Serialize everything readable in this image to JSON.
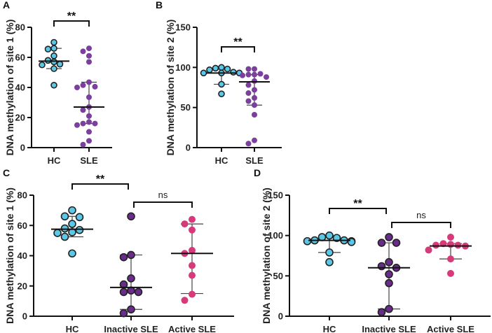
{
  "chart_data": [
    {
      "panel": "A",
      "type": "scatter",
      "ylabel": "DNA methylation of site 1 (%)",
      "ylim": [
        0,
        80
      ],
      "yticks": [
        0,
        20,
        40,
        60,
        80
      ],
      "categories": [
        "HC",
        "SLE"
      ],
      "series": [
        {
          "name": "HC",
          "color": "#5bc8e8",
          "outline": true,
          "values": [
            70,
            66,
            65.5,
            61,
            58,
            57,
            55.5,
            55,
            52.5,
            41.5
          ],
          "median": 57.5,
          "iqr": [
            52.5,
            66
          ]
        },
        {
          "name": "SLE",
          "color": "#7b3f9e",
          "outline": false,
          "values": [
            66,
            64,
            61,
            57,
            43.5,
            41.5,
            40.5,
            40,
            33.5,
            27,
            25,
            21,
            17,
            16,
            16,
            15,
            10.5,
            4.5,
            2
          ],
          "median": 27,
          "iqr": [
            16,
            43.5
          ]
        }
      ],
      "comparisons": [
        {
          "from": "HC",
          "to": "SLE",
          "label": "**"
        }
      ]
    },
    {
      "panel": "B",
      "type": "scatter",
      "ylabel": "DNA methylation of site 2 (%)",
      "ylim": [
        0,
        150
      ],
      "yticks": [
        0,
        50,
        100,
        150
      ],
      "categories": [
        "HC",
        "SLE"
      ],
      "series": [
        {
          "name": "HC",
          "color": "#5bc8e8",
          "outline": true,
          "values": [
            100,
            99,
            98,
            97,
            94,
            93,
            93,
            93,
            79,
            67
          ],
          "median": 93,
          "iqr": [
            79,
            98
          ]
        },
        {
          "name": "SLE",
          "color": "#7b3f9e",
          "outline": false,
          "values": [
            98,
            98,
            92,
            91,
            91,
            90,
            88,
            83,
            78,
            72,
            68,
            62,
            58,
            53,
            41,
            9,
            5
          ],
          "median": 82,
          "iqr": [
            53,
            91
          ]
        }
      ],
      "comparisons": [
        {
          "from": "HC",
          "to": "SLE",
          "label": "**"
        }
      ]
    },
    {
      "panel": "C",
      "type": "scatter",
      "ylabel": "DNA methylation of site 1 (%)",
      "ylim": [
        0,
        80
      ],
      "yticks": [
        0,
        20,
        40,
        60,
        80
      ],
      "categories": [
        "HC",
        "Inactive SLE",
        "Active SLE"
      ],
      "series": [
        {
          "name": "HC",
          "color": "#5bc8e8",
          "outline": true,
          "values": [
            70,
            66,
            65.5,
            61,
            58,
            57,
            55.5,
            55,
            52.5,
            41.5
          ],
          "median": 57.5,
          "iqr": [
            52.5,
            66
          ]
        },
        {
          "name": "Inactive SLE",
          "color": "#6a2c8a",
          "outline": true,
          "values": [
            66,
            40.5,
            39,
            25,
            21,
            17,
            16,
            16,
            4.5,
            2
          ],
          "median": 19,
          "iqr": [
            4.5,
            40.5
          ]
        },
        {
          "name": "Active SLE",
          "color": "#d63a7a",
          "outline": false,
          "values": [
            64,
            61,
            57,
            43.5,
            41.5,
            33.5,
            27,
            14.5,
            10.5
          ],
          "median": 41.5,
          "iqr": [
            15,
            61
          ]
        }
      ],
      "comparisons": [
        {
          "from": "HC",
          "to": "Inactive SLE",
          "label": "**"
        },
        {
          "from": "Inactive SLE",
          "to": "Active SLE",
          "label": "ns"
        }
      ]
    },
    {
      "panel": "D",
      "type": "scatter",
      "ylabel": "DNA methylation of site 2 (%)",
      "ylim": [
        0,
        150
      ],
      "yticks": [
        0,
        50,
        100,
        150
      ],
      "categories": [
        "HC",
        "Inactive SLE",
        "Active SLE"
      ],
      "series": [
        {
          "name": "HC",
          "color": "#5bc8e8",
          "outline": true,
          "values": [
            100,
            98,
            97,
            94,
            94,
            93,
            93,
            92,
            79,
            67
          ],
          "median": 94,
          "iqr": [
            79,
            98
          ]
        },
        {
          "name": "Inactive SLE",
          "color": "#6a2c8a",
          "outline": true,
          "values": [
            98,
            91,
            91,
            67,
            62,
            60,
            52,
            41,
            9,
            5
          ],
          "median": 60,
          "iqr": [
            9,
            91
          ]
        },
        {
          "name": "Active SLE",
          "color": "#d63a7a",
          "outline": false,
          "values": [
            98,
            90,
            89,
            88,
            88,
            87,
            82,
            71,
            53
          ],
          "median": 87,
          "iqr": [
            71,
            90
          ]
        }
      ],
      "comparisons": [
        {
          "from": "HC",
          "to": "Inactive SLE",
          "label": "**"
        },
        {
          "from": "Inactive SLE",
          "to": "Active SLE",
          "label": "ns"
        }
      ]
    }
  ]
}
